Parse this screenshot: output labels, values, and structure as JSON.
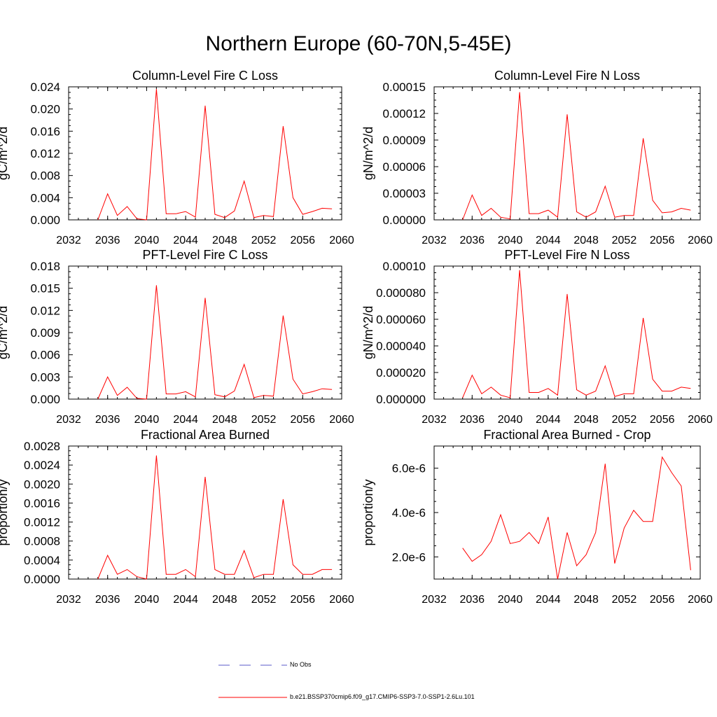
{
  "figure": {
    "title": "Northern Europe (60-70N,5-45E)"
  },
  "legend": {
    "entries": [
      {
        "label": "No Obs",
        "color": "#5a5ac8",
        "style": "dashed"
      },
      {
        "label": "b.e21.BSSP370cmip6.f09_g17.CMIP6-SSP3-7.0-SSP1-2.6Lu.101",
        "color": "#ff0000",
        "style": "solid"
      }
    ]
  },
  "chart_data": [
    {
      "type": "line",
      "title": "Column-Level Fire C Loss",
      "ylabel": "gC/m^2/d",
      "xlim": [
        2032,
        2060
      ],
      "ylim": [
        0,
        0.024
      ],
      "xticks": [
        "2032",
        "2036",
        "2040",
        "2044",
        "2048",
        "2052",
        "2056",
        "2060"
      ],
      "yticks": [
        "0.000",
        "0.004",
        "0.008",
        "0.012",
        "0.016",
        "0.020",
        "0.024"
      ],
      "series": [
        {
          "color": "#ff0000",
          "x": [
            2035,
            2036,
            2037,
            2038,
            2039,
            2040,
            2041,
            2042,
            2043,
            2044,
            2045,
            2046,
            2047,
            2048,
            2049,
            2050,
            2051,
            2052,
            2053,
            2054,
            2055,
            2056,
            2057,
            2058,
            2059
          ],
          "y": [
            0,
            0.0047,
            0.0008,
            0.0024,
            0.0002,
            0,
            0.0236,
            0.0011,
            0.0011,
            0.0015,
            0.0005,
            0.0206,
            0.001,
            0.0004,
            0.0016,
            0.007,
            0.0004,
            0.0008,
            0.0006,
            0.0169,
            0.004,
            0.001,
            0.0015,
            0.0021,
            0.002
          ]
        }
      ]
    },
    {
      "type": "line",
      "title": "Column-Level Fire N Loss",
      "ylabel": "gN/m^2/d",
      "xlim": [
        2032,
        2060
      ],
      "ylim": [
        0,
        0.00015
      ],
      "xticks": [
        "2032",
        "2036",
        "2040",
        "2044",
        "2048",
        "2052",
        "2056",
        "2060"
      ],
      "yticks": [
        "0.00000",
        "0.00003",
        "0.00006",
        "0.00009",
        "0.00012",
        "0.00015"
      ],
      "series": [
        {
          "color": "#ff0000",
          "x": [
            2035,
            2036,
            2037,
            2038,
            2039,
            2040,
            2041,
            2042,
            2043,
            2044,
            2045,
            2046,
            2047,
            2048,
            2049,
            2050,
            2051,
            2052,
            2053,
            2054,
            2055,
            2056,
            2057,
            2058,
            2059
          ],
          "y": [
            0,
            2.8e-05,
            5e-06,
            1.3e-05,
            3e-06,
            1e-06,
            0.000144,
            7e-06,
            7e-06,
            1.1e-05,
            3e-06,
            0.000119,
            9e-06,
            3e-06,
            9e-06,
            3.8e-05,
            3e-06,
            5e-06,
            5e-06,
            9.2e-05,
            2.2e-05,
            8e-06,
            9e-06,
            1.3e-05,
            1.1e-05
          ]
        }
      ]
    },
    {
      "type": "line",
      "title": "PFT-Level Fire C Loss",
      "ylabel": "gC/m^2/d",
      "xlim": [
        2032,
        2060
      ],
      "ylim": [
        0,
        0.018
      ],
      "xticks": [
        "2032",
        "2036",
        "2040",
        "2044",
        "2048",
        "2052",
        "2056",
        "2060"
      ],
      "yticks": [
        "0.000",
        "0.003",
        "0.006",
        "0.009",
        "0.012",
        "0.015",
        "0.018"
      ],
      "series": [
        {
          "color": "#ff0000",
          "x": [
            2035,
            2036,
            2037,
            2038,
            2039,
            2040,
            2041,
            2042,
            2043,
            2044,
            2045,
            2046,
            2047,
            2048,
            2049,
            2050,
            2051,
            2052,
            2053,
            2054,
            2055,
            2056,
            2057,
            2058,
            2059
          ],
          "y": [
            0,
            0.003,
            0.0005,
            0.0016,
            0.0001,
            0,
            0.0154,
            0.0007,
            0.0007,
            0.001,
            0.0003,
            0.0137,
            0.0006,
            0.0003,
            0.0011,
            0.0047,
            0.0002,
            0.0005,
            0.0004,
            0.0113,
            0.0027,
            0.0007,
            0.001,
            0.0014,
            0.0013
          ]
        }
      ]
    },
    {
      "type": "line",
      "title": "PFT-Level Fire N Loss",
      "ylabel": "gN/m^2/d",
      "xlim": [
        2032,
        2060
      ],
      "ylim": [
        0,
        0.0001
      ],
      "xticks": [
        "2032",
        "2036",
        "2040",
        "2044",
        "2048",
        "2052",
        "2056",
        "2060"
      ],
      "yticks": [
        "0.000000",
        "0.000020",
        "0.000040",
        "0.000060",
        "0.000080",
        "0.00010"
      ],
      "series": [
        {
          "color": "#ff0000",
          "x": [
            2035,
            2036,
            2037,
            2038,
            2039,
            2040,
            2041,
            2042,
            2043,
            2044,
            2045,
            2046,
            2047,
            2048,
            2049,
            2050,
            2051,
            2052,
            2053,
            2054,
            2055,
            2056,
            2057,
            2058,
            2059
          ],
          "y": [
            1e-06,
            1.8e-05,
            4e-06,
            9e-06,
            3e-06,
            1e-06,
            9.7e-05,
            5e-06,
            5e-06,
            8e-06,
            3e-06,
            7.9e-05,
            7e-06,
            3e-06,
            6e-06,
            2.5e-05,
            2e-06,
            4e-06,
            4e-06,
            6.1e-05,
            1.5e-05,
            6e-06,
            6e-06,
            9e-06,
            8e-06
          ]
        }
      ]
    },
    {
      "type": "line",
      "title": "Fractional Area Burned",
      "ylabel": "proportion/y",
      "xlim": [
        2032,
        2060
      ],
      "ylim": [
        0,
        0.0028
      ],
      "xticks": [
        "2032",
        "2036",
        "2040",
        "2044",
        "2048",
        "2052",
        "2056",
        "2060"
      ],
      "yticks": [
        "0.0000",
        "0.0004",
        "0.0008",
        "0.0012",
        "0.0016",
        "0.0020",
        "0.0024",
        "0.0028"
      ],
      "series": [
        {
          "color": "#ff0000",
          "x": [
            2035,
            2036,
            2037,
            2038,
            2039,
            2040,
            2041,
            2042,
            2043,
            2044,
            2045,
            2046,
            2047,
            2048,
            2049,
            2050,
            2051,
            2052,
            2053,
            2054,
            2055,
            2056,
            2057,
            2058,
            2059
          ],
          "y": [
            0,
            0.0005,
            0.0001,
            0.0002,
            5e-05,
            0,
            0.0026,
            0.0001,
            0.0001,
            0.0002,
            5e-05,
            0.00215,
            0.0002,
            0.0001,
            0.0001,
            0.0006,
            3e-05,
            0.0001,
            0.0001,
            0.00168,
            0.0003,
            0.0001,
            0.0001,
            0.0002,
            0.0002
          ]
        }
      ]
    },
    {
      "type": "line",
      "title": "Fractional Area Burned - Crop",
      "ylabel": "proportion/y",
      "xlim": [
        2032,
        2060
      ],
      "ylim": [
        1e-06,
        7e-06
      ],
      "xticks": [
        "2032",
        "2036",
        "2040",
        "2044",
        "2048",
        "2052",
        "2056",
        "2060"
      ],
      "yticks": [
        "2.0e-6",
        "4.0e-6",
        "6.0e-6"
      ],
      "ytick_values": [
        2e-06,
        4e-06,
        6e-06
      ],
      "series": [
        {
          "color": "#ff0000",
          "x": [
            2035,
            2036,
            2037,
            2038,
            2039,
            2040,
            2041,
            2042,
            2043,
            2044,
            2045,
            2046,
            2047,
            2048,
            2049,
            2050,
            2051,
            2052,
            2053,
            2054,
            2055,
            2056,
            2057,
            2058,
            2059
          ],
          "y": [
            2.4e-06,
            1.8e-06,
            2.1e-06,
            2.7e-06,
            3.9e-06,
            2.6e-06,
            2.7e-06,
            3.1e-06,
            2.6e-06,
            3.8e-06,
            1e-06,
            3.1e-06,
            1.6e-06,
            2.1e-06,
            3.1e-06,
            6.2e-06,
            1.7e-06,
            3.3e-06,
            4.1e-06,
            3.6e-06,
            3.6e-06,
            6.5e-06,
            5.8e-06,
            5.2e-06,
            1.4e-06
          ]
        }
      ]
    }
  ]
}
